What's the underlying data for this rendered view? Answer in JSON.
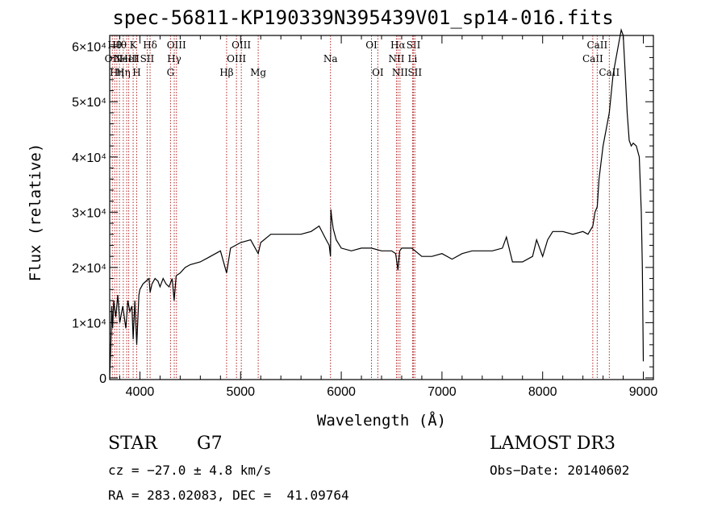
{
  "chart_data": {
    "type": "line",
    "title": "spec-56811-KP190339N395439V01_sp14-016.fits",
    "xlabel": "Wavelength (Å)",
    "ylabel": "Flux (relative)",
    "xlim": [
      3700,
      9100
    ],
    "ylim": [
      -300,
      62000
    ],
    "x_ticks": [
      {
        "value": 4000,
        "label": "4000"
      },
      {
        "value": 5000,
        "label": "5000"
      },
      {
        "value": 6000,
        "label": "6000"
      },
      {
        "value": 7000,
        "label": "7000"
      },
      {
        "value": 8000,
        "label": "8000"
      },
      {
        "value": 9000,
        "label": "9000"
      }
    ],
    "y_ticks": [
      {
        "value": 0,
        "label": "0"
      },
      {
        "value": 10000,
        "label": "1×10⁴"
      },
      {
        "value": 20000,
        "label": "2×10⁴"
      },
      {
        "value": 30000,
        "label": "3×10⁴"
      },
      {
        "value": 40000,
        "label": "4×10⁴"
      },
      {
        "value": 50000,
        "label": "5×10⁴"
      },
      {
        "value": 60000,
        "label": "6×10⁴"
      }
    ],
    "grid": false,
    "line_color": "#000000",
    "marker_color": "#b22222",
    "spectrum": {
      "x": [
        3700,
        3710,
        3720,
        3730,
        3740,
        3760,
        3780,
        3800,
        3830,
        3860,
        3880,
        3900,
        3920,
        3933,
        3950,
        3968,
        3990,
        4000,
        4030,
        4060,
        4090,
        4101,
        4120,
        4150,
        4180,
        4200,
        4230,
        4260,
        4290,
        4320,
        4340,
        4360,
        4400,
        4450,
        4500,
        4600,
        4700,
        4800,
        4861,
        4900,
        5000,
        5100,
        5175,
        5200,
        5300,
        5400,
        5500,
        5600,
        5700,
        5780,
        5850,
        5880,
        5893,
        5897,
        5905,
        5920,
        5950,
        6000,
        6100,
        6200,
        6300,
        6400,
        6500,
        6540,
        6563,
        6580,
        6600,
        6700,
        6800,
        6900,
        7000,
        7100,
        7200,
        7300,
        7400,
        7500,
        7600,
        7640,
        7700,
        7800,
        7900,
        7940,
        8000,
        8050,
        8100,
        8200,
        8300,
        8400,
        8450,
        8498,
        8520,
        8542,
        8560,
        8600,
        8662,
        8700,
        8750,
        8780,
        8800,
        8820,
        8840,
        8860,
        8880,
        8900,
        8930,
        8960,
        8980,
        8990,
        9000
      ],
      "y": [
        0,
        5000,
        13000,
        9000,
        14000,
        11000,
        15000,
        10000,
        13000,
        9000,
        14000,
        12000,
        13000,
        7000,
        14000,
        6000,
        15000,
        16000,
        17000,
        17500,
        18000,
        15500,
        17000,
        18000,
        17500,
        16500,
        18000,
        17000,
        16500,
        18000,
        14000,
        18500,
        19000,
        20000,
        20500,
        21000,
        22000,
        23000,
        19000,
        23500,
        24500,
        25000,
        22500,
        24500,
        26000,
        26000,
        26000,
        26000,
        26500,
        27500,
        25000,
        24000,
        22000,
        30500,
        29000,
        27000,
        25000,
        23500,
        23000,
        23500,
        23500,
        23000,
        23000,
        22500,
        19500,
        23000,
        23500,
        23500,
        22000,
        22000,
        22500,
        21500,
        22500,
        23000,
        23000,
        23000,
        23500,
        25500,
        21000,
        21000,
        22000,
        25000,
        22000,
        25000,
        26500,
        26500,
        26000,
        26500,
        26000,
        27500,
        30000,
        31000,
        36000,
        42000,
        48000,
        55000,
        60000,
        63000,
        62000,
        55000,
        48000,
        43000,
        42000,
        42500,
        42000,
        40000,
        30000,
        20000,
        3000
      ]
    },
    "lines": [
      {
        "x": 3726,
        "label": "OII",
        "row": 1
      },
      {
        "x": 3750,
        "label": "Hθ",
        "row": 0
      },
      {
        "x": 3771,
        "label": "Hη",
        "row": 2
      },
      {
        "x": 3797,
        "label": "Hθ",
        "row": 0
      },
      {
        "x": 3835,
        "label": "Hη",
        "row": 2
      },
      {
        "x": 3869,
        "label": "NeIII",
        "row": 1
      },
      {
        "x": 3889,
        "label": "HeI",
        "row": 1
      },
      {
        "x": 3933,
        "label": "K",
        "row": 0
      },
      {
        "x": 3968,
        "label": "H",
        "row": 2
      },
      {
        "x": 4072,
        "label": "SII",
        "row": 1
      },
      {
        "x": 4101,
        "label": "Hδ",
        "row": 0
      },
      {
        "x": 4304,
        "label": "G",
        "row": 2
      },
      {
        "x": 4341,
        "label": "Hγ",
        "row": 1
      },
      {
        "x": 4363,
        "label": "OIII",
        "row": 0
      },
      {
        "x": 4861,
        "label": "Hβ",
        "row": 2
      },
      {
        "x": 4959,
        "label": "OIII",
        "row": 1
      },
      {
        "x": 5007,
        "label": "OIII",
        "row": 0
      },
      {
        "x": 5175,
        "label": "Mg",
        "row": 2
      },
      {
        "x": 5893,
        "label": "Na",
        "row": 1
      },
      {
        "x": 6300,
        "label": "OI",
        "row": 0
      },
      {
        "x": 6363,
        "label": "OI",
        "row": 2
      },
      {
        "x": 6548,
        "label": "NII",
        "row": 1
      },
      {
        "x": 6563,
        "label": "Hα",
        "row": 0
      },
      {
        "x": 6583,
        "label": "NII",
        "row": 2
      },
      {
        "x": 6717,
        "label": "SII",
        "row": 0
      },
      {
        "x": 6731,
        "label": "SII",
        "row": 2
      },
      {
        "x": 6708,
        "label": "Li",
        "row": 1
      },
      {
        "x": 8498,
        "label": "CaII",
        "row": 1
      },
      {
        "x": 8542,
        "label": "CaII",
        "row": 0
      },
      {
        "x": 8662,
        "label": "CaII",
        "row": 2
      }
    ]
  },
  "info": {
    "class": "STAR",
    "subclass": "G7",
    "survey": "LAMOST DR3",
    "cz": "cz = −27.0 ± 4.8 km/s",
    "obs_date": "Obs−Date: 20140602",
    "coords": "RA = 283.02083, DEC =  41.09764"
  }
}
